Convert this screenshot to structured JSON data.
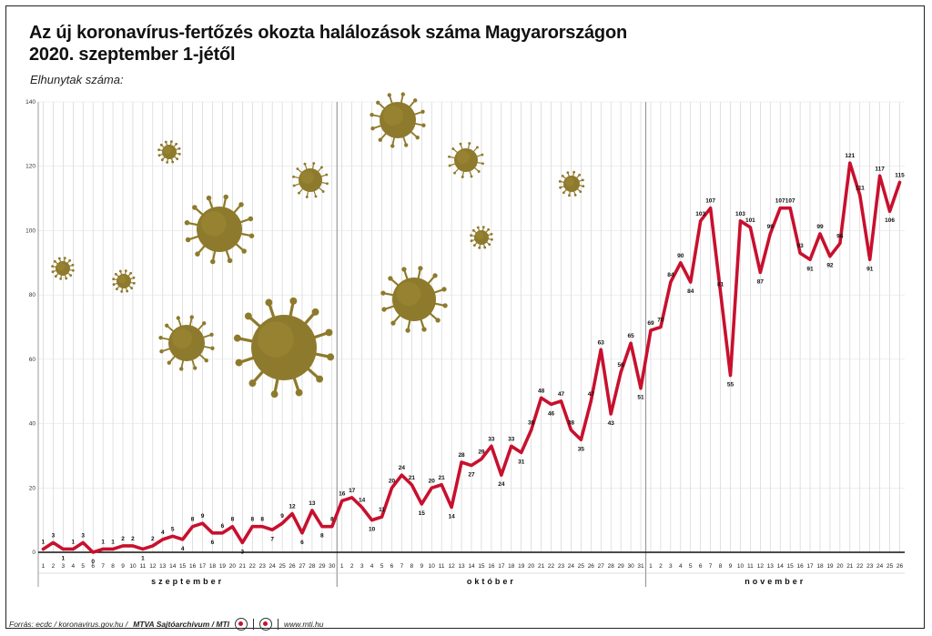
{
  "title_line1": "Az új koronavírus-fertőzés okozta halálozások száma Magyarországon",
  "title_line2": "2020. szeptember 1-jétől",
  "unit_label": "Elhunytak száma:",
  "footer": {
    "source": "Forrás: ecdc / koronavirus.gov.hu /",
    "agency": "MTVA Sajtóarchívum / MTI",
    "site": "www.mti.hu"
  },
  "colors": {
    "line": "#c8102e",
    "virus": "#8e7a2c",
    "grid": "#cccccc",
    "month_divider": "#999999"
  },
  "chart_data": {
    "type": "line",
    "ylim": [
      0,
      140
    ],
    "y_ticks": [
      0,
      20,
      40,
      60,
      80,
      100,
      120,
      140
    ],
    "months": [
      {
        "name": "szeptember",
        "days": 30
      },
      {
        "name": "október",
        "days": 31
      },
      {
        "name": "november",
        "days": 26
      }
    ],
    "series": [
      {
        "values": [
          1,
          3,
          1,
          1,
          3,
          0,
          1,
          1,
          2,
          2,
          1,
          2,
          4,
          5,
          4,
          8,
          9,
          6,
          6,
          8,
          3,
          8,
          8,
          7,
          9,
          12,
          6,
          13,
          8,
          8,
          16,
          17,
          14,
          10,
          11,
          20,
          24,
          21,
          15,
          20,
          21,
          14,
          28,
          27,
          29,
          33,
          24,
          33,
          31,
          38,
          48,
          46,
          47,
          38,
          35,
          47,
          63,
          43,
          56,
          65,
          51,
          69,
          70,
          84,
          90,
          84,
          103,
          107,
          81,
          55,
          103,
          101,
          87,
          99,
          107,
          107,
          93,
          91,
          99,
          92,
          96,
          121,
          111,
          91,
          117,
          106,
          115
        ]
      }
    ],
    "data_labels": [
      1,
      3,
      1,
      1,
      3,
      0,
      1,
      1,
      2,
      2,
      1,
      2,
      4,
      5,
      4,
      8,
      9,
      6,
      6,
      8,
      3,
      8,
      8,
      7,
      9,
      12,
      6,
      13,
      8,
      8,
      16,
      17,
      14,
      10,
      11,
      20,
      24,
      21,
      15,
      20,
      21,
      14,
      28,
      27,
      29,
      33,
      24,
      33,
      31,
      38,
      48,
      46,
      47,
      38,
      35,
      47,
      63,
      43,
      56,
      65,
      51,
      69,
      70,
      84,
      90,
      84,
      103,
      107,
      81,
      55,
      103,
      101,
      87,
      99,
      107,
      107,
      93,
      91,
      99,
      92,
      96,
      121,
      111,
      91,
      117,
      106,
      115
    ]
  }
}
